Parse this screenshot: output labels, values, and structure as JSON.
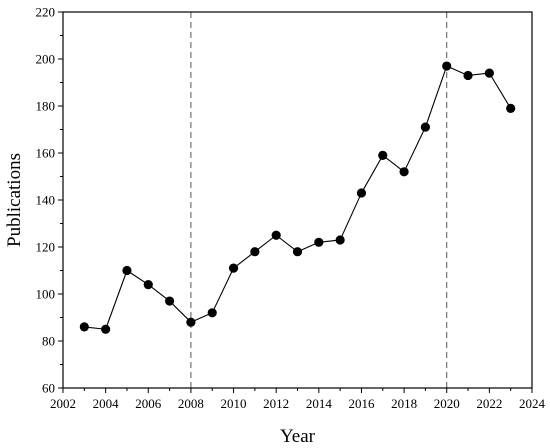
{
  "chart_data": {
    "type": "line",
    "title": "",
    "xlabel": "Year",
    "ylabel": "Publications",
    "xlim": [
      2002,
      2024
    ],
    "ylim": [
      60,
      220
    ],
    "xticks": [
      2002,
      2004,
      2006,
      2008,
      2010,
      2012,
      2014,
      2016,
      2018,
      2020,
      2022,
      2024
    ],
    "yticks": [
      60,
      80,
      100,
      120,
      140,
      160,
      180,
      200,
      220
    ],
    "x": [
      2003,
      2004,
      2005,
      2006,
      2007,
      2008,
      2009,
      2010,
      2011,
      2012,
      2013,
      2014,
      2015,
      2016,
      2017,
      2018,
      2019,
      2020,
      2021,
      2022,
      2023
    ],
    "series": [
      {
        "values": [
          86,
          85,
          110,
          104,
          97,
          88,
          92,
          111,
          118,
          125,
          118,
          122,
          123,
          143,
          159,
          152,
          171,
          197,
          193,
          194,
          179
        ]
      }
    ],
    "reference_lines": [
      {
        "axis": "x",
        "value": 2008,
        "style": "dashed"
      },
      {
        "axis": "x",
        "value": 2020,
        "style": "dashed"
      }
    ],
    "grid": false,
    "legend": "none",
    "colors": {
      "line": "#000000",
      "marker": "#000000",
      "axis": "#000000",
      "reference_line": "#555555"
    }
  }
}
